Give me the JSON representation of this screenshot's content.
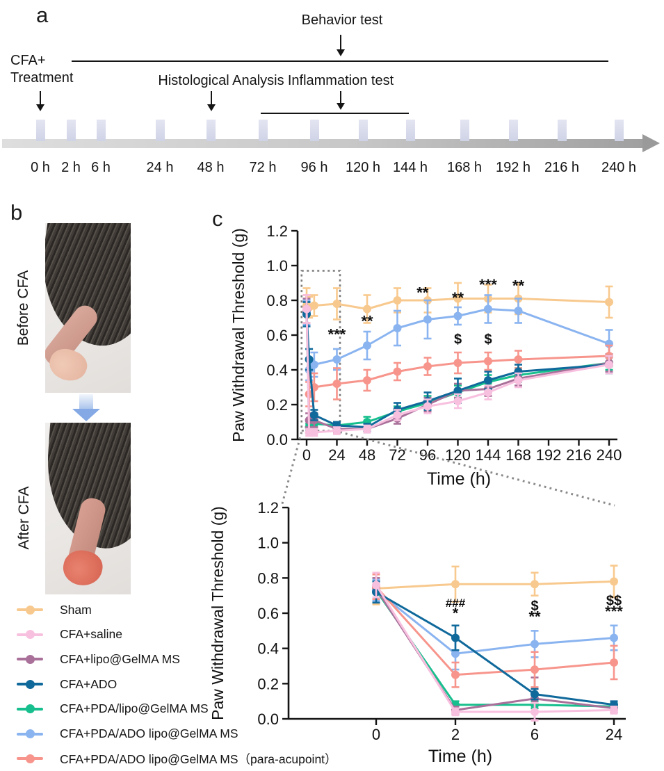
{
  "figure": {
    "panel_a_letter": "a",
    "panel_b_letter": "b",
    "panel_c_letter": "c"
  },
  "panel_a": {
    "behavior_test_label": "Behavior test",
    "cfa_treatment_line1": "CFA+",
    "cfa_treatment_line2": "Treatment",
    "histological_label": "Histological Analysis",
    "inflammation_label": "Inflammation test",
    "timepoints": [
      "0 h",
      "2 h",
      "6 h",
      "24 h",
      "48 h",
      "72 h",
      "96 h",
      "120 h",
      "144 h",
      "168 h",
      "192 h",
      "216 h",
      "240 h"
    ]
  },
  "panel_b": {
    "before_label": "Before CFA",
    "after_label": "After CFA"
  },
  "legend": {
    "items": [
      {
        "label": "Sham",
        "color": "#F8C98E"
      },
      {
        "label": "CFA+saline",
        "color": "#F8C0DF"
      },
      {
        "label": "CFA+lipo@GelMA MS",
        "color": "#A9709A"
      },
      {
        "label": "CFA+ADO",
        "color": "#10699B"
      },
      {
        "label": "CFA+PDA/lipo@GelMA MS",
        "color": "#16BF8D"
      },
      {
        "label": "CFA+PDA/ADO lipo@GelMA MS",
        "color": "#8AB4F0"
      },
      {
        "label": "CFA+PDA/ADO lipo@GelMA MS（para-acupoint）",
        "color": "#F7958C"
      }
    ]
  },
  "chart_data": [
    {
      "type": "line",
      "xscale": "linear",
      "title": "",
      "xlabel": "Time (h)",
      "ylabel": "Paw Withdrawal Threshold (g)",
      "x": [
        0,
        2,
        6,
        24,
        48,
        72,
        96,
        120,
        144,
        168,
        240
      ],
      "xticks": [
        0,
        24,
        48,
        72,
        96,
        120,
        144,
        168,
        192,
        216,
        240
      ],
      "ylim": [
        0,
        1.2
      ],
      "yticks": [
        "0.0",
        "0.2",
        "0.4",
        "0.6",
        "0.8",
        "1.0",
        "1.2"
      ],
      "series": [
        {
          "name": "Sham",
          "color": "#F8C98E",
          "values": [
            0.77,
            0.76,
            0.77,
            0.78,
            0.75,
            0.8,
            0.8,
            0.81,
            0.81,
            0.81,
            0.79
          ],
          "err": [
            0.1,
            0.06,
            0.06,
            0.09,
            0.08,
            0.07,
            0.07,
            0.09,
            0.08,
            0.09,
            0.09
          ]
        },
        {
          "name": "CFA+saline",
          "color": "#F8C0DF",
          "values": [
            0.75,
            0.04,
            0.04,
            0.05,
            0.06,
            0.14,
            0.19,
            0.22,
            0.27,
            0.34,
            0.43
          ],
          "err": [
            0.08,
            0.02,
            0.02,
            0.02,
            0.02,
            0.03,
            0.04,
            0.04,
            0.04,
            0.04,
            0.05
          ]
        },
        {
          "name": "CFA+lipo@GelMA MS",
          "color": "#A9709A",
          "values": [
            0.74,
            0.11,
            0.11,
            0.06,
            0.06,
            0.12,
            0.2,
            0.28,
            0.29,
            0.35,
            0.44
          ],
          "err": [
            0.07,
            0.04,
            0.04,
            0.02,
            0.02,
            0.03,
            0.04,
            0.04,
            0.04,
            0.04,
            0.05
          ]
        },
        {
          "name": "CFA+ADO",
          "color": "#10699B",
          "values": [
            0.72,
            0.46,
            0.14,
            0.08,
            0.07,
            0.17,
            0.22,
            0.28,
            0.34,
            0.39,
            0.43
          ],
          "err": [
            0.07,
            0.06,
            0.03,
            0.02,
            0.02,
            0.04,
            0.05,
            0.07,
            0.05,
            0.04,
            0.05
          ]
        },
        {
          "name": "CFA+PDA/lipo@GelMA MS",
          "color": "#16BF8D",
          "values": [
            0.73,
            0.07,
            0.09,
            0.08,
            0.1,
            0.16,
            0.21,
            0.27,
            0.33,
            0.37,
            0.44
          ],
          "err": [
            0.07,
            0.02,
            0.02,
            0.02,
            0.03,
            0.03,
            0.04,
            0.04,
            0.04,
            0.04,
            0.04
          ]
        },
        {
          "name": "CFA+PDA/ADO lipo@GelMA MS",
          "color": "#8AB4F0",
          "values": [
            0.73,
            0.4,
            0.43,
            0.46,
            0.54,
            0.64,
            0.69,
            0.71,
            0.75,
            0.74,
            0.55
          ],
          "err": [
            0.07,
            0.06,
            0.07,
            0.06,
            0.08,
            0.1,
            0.11,
            0.05,
            0.08,
            0.07,
            0.08
          ]
        },
        {
          "name": "CFA+PDA/ADO lipo@GelMA MS（para-acupoint）",
          "color": "#F7958C",
          "values": [
            0.75,
            0.26,
            0.3,
            0.32,
            0.34,
            0.39,
            0.42,
            0.44,
            0.45,
            0.46,
            0.48
          ],
          "err": [
            0.08,
            0.07,
            0.08,
            0.09,
            0.06,
            0.05,
            0.05,
            0.06,
            0.05,
            0.05,
            0.06
          ]
        }
      ],
      "annotations": [
        {
          "x": 24,
          "v": 0.575,
          "text": "***"
        },
        {
          "x": 48,
          "v": 0.65,
          "text": "**"
        },
        {
          "x": 92,
          "v": 0.815,
          "text": "**"
        },
        {
          "x": 120,
          "v": 0.785,
          "text": "**"
        },
        {
          "x": 144,
          "v": 0.86,
          "text": "***"
        },
        {
          "x": 168,
          "v": 0.855,
          "text": "**"
        },
        {
          "x": 120,
          "v": 0.55,
          "text": "$"
        },
        {
          "x": 144,
          "v": 0.55,
          "text": "$"
        }
      ],
      "zoom_box_hours": [
        -4,
        26.5
      ],
      "zoom_box_values": [
        0.05,
        0.97
      ]
    },
    {
      "type": "line",
      "xscale": "category",
      "title": "",
      "xlabel": "Time (h)",
      "ylabel": "Paw Withdrawal Threshold (g)",
      "x": [
        0,
        2,
        6,
        24
      ],
      "xticks": [
        "0",
        "2",
        "6",
        "24"
      ],
      "ylim": [
        0,
        1.2
      ],
      "yticks": [
        "0.0",
        "0.2",
        "0.4",
        "0.6",
        "0.8",
        "1.0",
        "1.2"
      ],
      "series": [
        {
          "name": "Sham",
          "color": "#F8C98E",
          "values": [
            0.74,
            0.765,
            0.765,
            0.78
          ],
          "err": [
            0.09,
            0.1,
            0.065,
            0.09
          ]
        },
        {
          "name": "CFA+saline",
          "color": "#F8C0DF",
          "values": [
            0.76,
            0.04,
            0.04,
            0.05
          ],
          "err": [
            0.07,
            0.02,
            0.05,
            0.02
          ]
        },
        {
          "name": "CFA+lipo@GelMA MS",
          "color": "#A9709A",
          "values": [
            0.74,
            0.05,
            0.115,
            0.06
          ],
          "err": [
            0.06,
            0.02,
            0.12,
            0.02
          ]
        },
        {
          "name": "CFA+ADO",
          "color": "#10699B",
          "values": [
            0.72,
            0.46,
            0.14,
            0.08
          ],
          "err": [
            0.06,
            0.07,
            0.03,
            0.02
          ]
        },
        {
          "name": "CFA+PDA/lipo@GelMA MS",
          "color": "#16BF8D",
          "values": [
            0.73,
            0.08,
            0.08,
            0.07
          ],
          "err": [
            0.06,
            0.02,
            0.02,
            0.02
          ]
        },
        {
          "name": "CFA+PDA/ADO lipo@GelMA MS",
          "color": "#8AB4F0",
          "values": [
            0.73,
            0.37,
            0.425,
            0.46
          ],
          "err": [
            0.06,
            0.09,
            0.075,
            0.07
          ]
        },
        {
          "name": "CFA+PDA/ADO lipo@GelMA MS（para-acupoint）",
          "color": "#F7958C",
          "values": [
            0.75,
            0.25,
            0.28,
            0.32
          ],
          "err": [
            0.07,
            0.07,
            0.1,
            0.095
          ]
        }
      ],
      "annotations": [
        {
          "x": 2,
          "v": 0.635,
          "text": "###"
        },
        {
          "x": 2,
          "v": 0.57,
          "text": "*"
        },
        {
          "x": 6,
          "v": 0.615,
          "text": "$"
        },
        {
          "x": 6,
          "v": 0.55,
          "text": "**"
        },
        {
          "x": 24,
          "v": 0.645,
          "text": "$$"
        },
        {
          "x": 24,
          "v": 0.58,
          "text": "***"
        }
      ]
    }
  ]
}
